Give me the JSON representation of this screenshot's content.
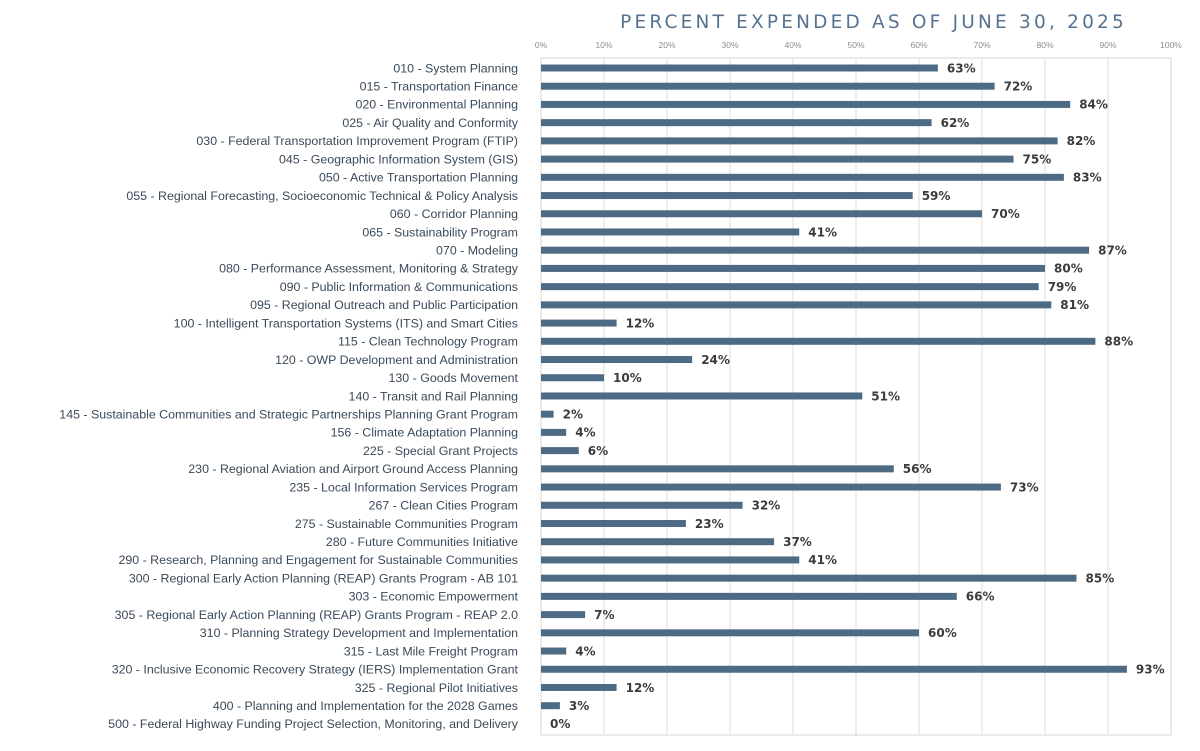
{
  "chart_data": {
    "type": "bar",
    "orientation": "horizontal",
    "title": "PERCENT EXPENDED AS OF JUNE 30, 2025",
    "xlim": [
      0,
      100
    ],
    "xticks": [
      "0%",
      "10%",
      "20%",
      "30%",
      "40%",
      "50%",
      "60%",
      "70%",
      "80%",
      "90%",
      "100%"
    ],
    "grid": "vertical",
    "bar_color": "#4e6b85",
    "categories": [
      "010 - System Planning",
      "015 - Transportation Finance",
      "020 - Environmental Planning",
      "025 - Air Quality and Conformity",
      "030 - Federal Transportation Improvement Program (FTIP)",
      "045 - Geographic Information System (GIS)",
      "050 - Active Transportation Planning",
      "055 - Regional Forecasting, Socioeconomic Technical & Policy Analysis",
      "060 - Corridor Planning",
      "065 - Sustainability Program",
      "070 - Modeling",
      "080 - Performance Assessment, Monitoring & Strategy",
      "090 - Public Information & Communications",
      "095 - Regional Outreach and Public Participation",
      "100 - Intelligent Transportation Systems (ITS) and Smart Cities",
      "115 - Clean Technology Program",
      "120 - OWP Development and Administration",
      "130 - Goods Movement",
      "140 - Transit and Rail Planning",
      "145 - Sustainable Communities and Strategic Partnerships Planning Grant Program",
      "156 - Climate Adaptation Planning",
      "225 - Special Grant Projects",
      "230 - Regional Aviation and Airport Ground Access Planning",
      "235 - Local Information Services Program",
      "267 - Clean Cities Program",
      "275 - Sustainable Communities Program",
      "280 - Future Communities Initiative",
      "290 - Research, Planning and Engagement for Sustainable Communities",
      "300 - Regional Early Action Planning (REAP) Grants Program - AB 101",
      "303 - Economic Empowerment",
      "305 - Regional Early Action Planning (REAP) Grants Program - REAP 2.0",
      "310 - Planning Strategy Development and Implementation",
      "315 - Last Mile Freight Program",
      "320 - Inclusive Economic Recovery Strategy (IERS) Implementation Grant",
      "325 - Regional Pilot Initiatives",
      "400 - Planning and Implementation for the 2028 Games",
      "500 - Federal Highway Funding Project Selection, Monitoring, and Delivery"
    ],
    "values": [
      63,
      72,
      84,
      62,
      82,
      75,
      83,
      59,
      70,
      41,
      87,
      80,
      79,
      81,
      12,
      88,
      24,
      10,
      51,
      2,
      4,
      6,
      56,
      73,
      32,
      23,
      37,
      41,
      85,
      66,
      7,
      60,
      4,
      93,
      12,
      3,
      0
    ],
    "value_labels": [
      "63%",
      "72%",
      "84%",
      "62%",
      "82%",
      "75%",
      "83%",
      "59%",
      "70%",
      "41%",
      "87%",
      "80%",
      "79%",
      "81%",
      "12%",
      "88%",
      "24%",
      "10%",
      "51%",
      "2%",
      "4%",
      "6%",
      "56%",
      "73%",
      "32%",
      "23%",
      "37%",
      "41%",
      "85%",
      "66%",
      "7%",
      "60%",
      "4%",
      "93%",
      "12%",
      "3%",
      "0%"
    ]
  }
}
